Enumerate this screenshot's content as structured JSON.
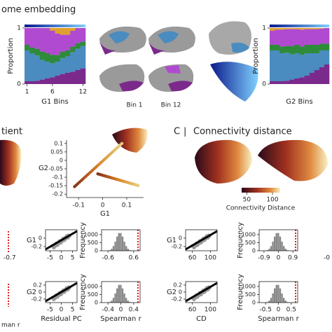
{
  "header": {
    "title": "ome embedding"
  },
  "bar_charts": [
    {
      "ylabel": "Proportion",
      "xlabel": "G1 Bins",
      "ylim": [
        0,
        1
      ],
      "yticks": [
        0,
        1
      ],
      "xticks": [
        1,
        6,
        12
      ],
      "segments": [
        {
          "color": "#7b2a8c",
          "values": [
            0.05,
            0.05,
            0.06,
            0.08,
            0.1,
            0.12,
            0.15,
            0.18,
            0.2,
            0.22,
            0.25,
            0.28
          ]
        },
        {
          "color": "#4a8cc0",
          "values": [
            0.55,
            0.5,
            0.45,
            0.35,
            0.3,
            0.25,
            0.25,
            0.28,
            0.3,
            0.35,
            0.38,
            0.4
          ]
        },
        {
          "color": "#2e8b3a",
          "values": [
            0.1,
            0.1,
            0.12,
            0.15,
            0.15,
            0.15,
            0.12,
            0.12,
            0.1,
            0.1,
            0.1,
            0.08
          ]
        },
        {
          "color": "#b04ad0",
          "values": [
            0.3,
            0.35,
            0.37,
            0.42,
            0.45,
            0.43,
            0.38,
            0.3,
            0.28,
            0.28,
            0.27,
            0.24
          ]
        },
        {
          "color": "#e0a030",
          "values": [
            0,
            0,
            0,
            0,
            0,
            0.05,
            0.1,
            0.12,
            0.12,
            0.05,
            0,
            0
          ]
        }
      ]
    },
    {
      "ylabel": "Proportion",
      "xlabel": "G2 Bins",
      "ylim": [
        0,
        1
      ],
      "yticks": [
        0,
        1
      ],
      "xticks": [],
      "segments": [
        {
          "color": "#7b2a8c",
          "values": [
            0.05,
            0.05,
            0.05,
            0.06,
            0.08,
            0.1,
            0.12,
            0.15,
            0.2,
            0.25,
            0.3,
            0.35
          ]
        },
        {
          "color": "#4a8cc0",
          "values": [
            0.55,
            0.55,
            0.5,
            0.5,
            0.45,
            0.45,
            0.4,
            0.4,
            0.35,
            0.3,
            0.3,
            0.25
          ]
        },
        {
          "color": "#2e8b3a",
          "values": [
            0.1,
            0.1,
            0.12,
            0.12,
            0.15,
            0.15,
            0.15,
            0.15,
            0.15,
            0.15,
            0.12,
            0.12
          ]
        },
        {
          "color": "#b04ad0",
          "values": [
            0.25,
            0.27,
            0.3,
            0.3,
            0.3,
            0.28,
            0.3,
            0.28,
            0.28,
            0.28,
            0.27,
            0.28
          ]
        },
        {
          "color": "#e0a030",
          "values": [
            0.05,
            0.03,
            0.03,
            0.02,
            0.02,
            0.02,
            0.03,
            0.02,
            0.02,
            0.02,
            0.01,
            0
          ]
        }
      ]
    }
  ],
  "brain_labels": [
    "Bin 1",
    "Bin 12"
  ],
  "panel_b": {
    "title": "tient",
    "xlabel": "G1",
    "ylabel": "G2",
    "xlim": [
      -0.15,
      0.17
    ],
    "ylim": [
      -0.22,
      0.12
    ],
    "xticks": [
      -0.1,
      0,
      0.1
    ],
    "yticks": [
      0.1,
      0.05,
      0,
      -0.05,
      -0.1,
      -0.15,
      -0.2
    ]
  },
  "panel_c": {
    "label": "C",
    "title": "Connectivity distance",
    "colorbar_lim": [
      40,
      115
    ],
    "colorbar_ticks": [
      50,
      100
    ],
    "colorbar_label": "Connectivity Distance"
  },
  "edge_labels": [
    "-0.7",
    "-0",
    "man r"
  ],
  "small_plots": [
    {
      "ylabel": "G1",
      "xlim": [
        -7,
        7
      ],
      "ylim": [
        -0.3,
        0.2
      ],
      "xticks": [
        -5,
        0,
        5
      ],
      "yticks": [
        0,
        -0.2
      ]
    },
    {
      "ylabel": "Frequency",
      "xlim": [
        -0.9,
        0.9
      ],
      "ylim": [
        0,
        1300
      ],
      "xticks": [
        -0.6,
        0.6
      ],
      "yticks": [
        0,
        500,
        1000
      ]
    },
    {
      "ylabel": "G1",
      "xlim": [
        45,
        115
      ],
      "ylim": [
        -0.3,
        0.2
      ],
      "xticks": [
        60,
        100
      ],
      "yticks": [
        0,
        -0.2
      ]
    },
    {
      "ylabel": "Frequency",
      "xlim": [
        -1.2,
        1.2
      ],
      "ylim": [
        0,
        1300
      ],
      "xticks": [
        -0.9,
        0,
        0.9
      ],
      "yticks": [
        0,
        500,
        1000
      ]
    },
    {
      "ylabel": "G2",
      "xlabel": "Residual PC",
      "xlim": [
        -7,
        7
      ],
      "ylim": [
        -0.3,
        0.3
      ],
      "xticks": [
        -5,
        0,
        5
      ],
      "yticks": [
        0.2,
        0,
        -0.2
      ]
    },
    {
      "ylabel": "Frequency",
      "xlabel": "Spearman r",
      "xlim": [
        -0.6,
        0.6
      ],
      "ylim": [
        0,
        1300
      ],
      "xticks": [
        -0.4,
        0,
        0.4
      ],
      "yticks": [
        0,
        500,
        1000
      ]
    },
    {
      "ylabel": "G2",
      "xlabel": "CD",
      "xlim": [
        45,
        115
      ],
      "ylim": [
        -0.3,
        0.3
      ],
      "xticks": [
        60,
        100
      ],
      "yticks": [
        0.2,
        0,
        -0.2
      ]
    },
    {
      "ylabel": "Frequency",
      "xlabel": "Spearman r",
      "xlim": [
        -0.75,
        0.75
      ],
      "ylim": [
        0,
        1300
      ],
      "xticks": [
        -0.5,
        0,
        0.5
      ],
      "yticks": [
        0,
        500,
        1000
      ]
    }
  ]
}
